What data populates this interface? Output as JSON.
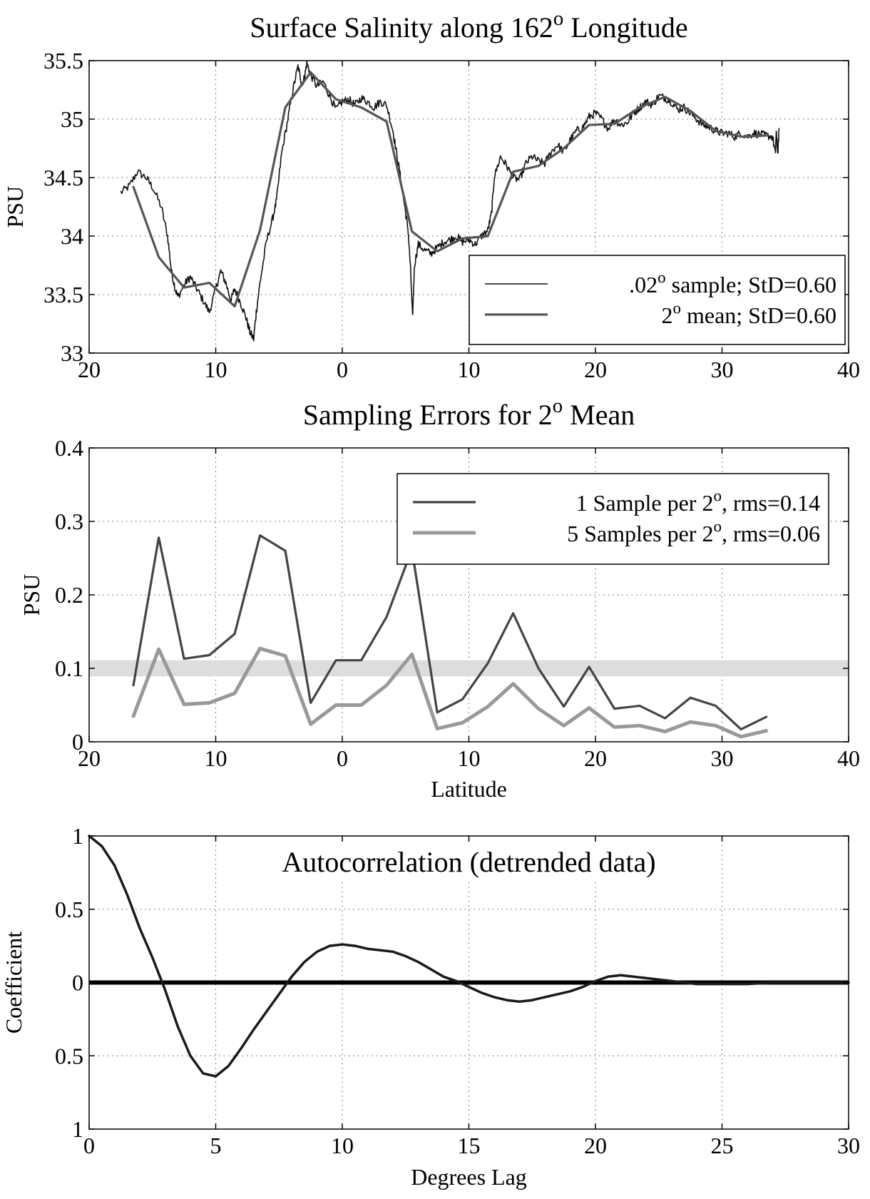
{
  "chart_data": [
    {
      "type": "line",
      "title": "Surface Salinity along 162",
      "title_superscript": "o",
      "title_tail": " Longitude",
      "xlabel": "",
      "ylabel": "PSU",
      "xlim": [
        -20,
        40
      ],
      "ylim": [
        33,
        35.5
      ],
      "xticks": [
        -20,
        -10,
        0,
        10,
        20,
        30,
        40
      ],
      "xtick_labels": [
        "20",
        "10",
        "0",
        "10",
        "20",
        "30",
        "40"
      ],
      "yticks": [
        33,
        33.5,
        34,
        34.5,
        35,
        35.5
      ],
      "ytick_labels": [
        "33",
        "33.5",
        "34",
        "34.5",
        "35",
        "35.5"
      ],
      "grid": true,
      "legend_position": "lower-right",
      "series": [
        {
          "name_pre": ".02",
          "name_sup": "o",
          "name_post": " sample;  StD=0.60",
          "color": "#111111",
          "width": 1.6,
          "noise": 0.035,
          "x": [
            -17.5,
            -16.8,
            -16.2,
            -15.5,
            -15,
            -14.3,
            -13.8,
            -13.5,
            -13.2,
            -13,
            -12.4,
            -12,
            -11.5,
            -11,
            -10.5,
            -10,
            -9.6,
            -9.2,
            -8.8,
            -8.5,
            -8,
            -7.6,
            -7.3,
            -7,
            -6.8,
            -6.5,
            -6,
            -5.5,
            -5.2,
            -4.8,
            -4.3,
            -3.9,
            -3.5,
            -3.2,
            -3,
            -2.8,
            -2.5,
            -2,
            -1.5,
            -1,
            -0.5,
            0,
            0.5,
            1,
            1.5,
            2,
            2.5,
            3,
            3.5,
            4,
            4.3,
            4.6,
            5,
            5.2,
            5.4,
            5.55,
            5.7,
            6,
            6.5,
            7,
            7.5,
            8,
            8.5,
            9,
            9.5,
            10,
            10.5,
            11,
            11.5,
            11.8,
            12,
            12.5,
            13,
            13.5,
            14,
            14.5,
            15,
            15.5,
            16,
            16.5,
            17,
            17.5,
            18,
            18.5,
            19,
            19.5,
            20,
            20.5,
            21,
            21.5,
            22,
            22.5,
            23,
            23.5,
            24,
            24.5,
            25,
            25.5,
            26,
            26.5,
            27,
            27.5,
            28,
            28.5,
            29,
            29.5,
            30,
            30.5,
            31,
            31.5,
            32,
            32.5,
            33,
            33.5,
            34,
            34.2,
            34.3,
            34.4,
            34.5
          ],
          "y": [
            34.37,
            34.43,
            34.55,
            34.5,
            34.42,
            34.25,
            34.0,
            33.7,
            33.55,
            33.48,
            33.6,
            33.65,
            33.55,
            33.45,
            33.35,
            33.55,
            33.7,
            33.6,
            33.45,
            33.55,
            33.42,
            33.3,
            33.18,
            33.12,
            33.35,
            33.6,
            33.95,
            34.15,
            34.3,
            34.7,
            35.0,
            35.25,
            35.45,
            35.3,
            35.35,
            35.48,
            35.38,
            35.28,
            35.32,
            35.2,
            35.08,
            35.15,
            35.17,
            35.12,
            35.18,
            35.15,
            35.1,
            35.15,
            35.12,
            34.9,
            34.7,
            34.5,
            34.2,
            34.05,
            33.7,
            33.3,
            33.75,
            33.93,
            33.88,
            33.85,
            33.9,
            33.95,
            33.97,
            34.0,
            33.95,
            33.97,
            33.93,
            34.0,
            34.05,
            34.2,
            34.5,
            34.68,
            34.6,
            34.5,
            34.48,
            34.62,
            34.68,
            34.64,
            34.62,
            34.72,
            34.78,
            34.72,
            34.82,
            34.9,
            34.93,
            35.02,
            35.05,
            35.0,
            34.92,
            35.0,
            34.95,
            34.97,
            35.05,
            35.1,
            35.15,
            35.12,
            35.2,
            35.18,
            35.15,
            35.08,
            35.1,
            35.05,
            35.0,
            34.95,
            34.93,
            34.9,
            34.88,
            34.88,
            34.85,
            34.88,
            34.85,
            34.88,
            34.87,
            34.86,
            34.85,
            34.7,
            34.9,
            34.68,
            34.92
          ]
        },
        {
          "name_pre": "2",
          "name_sup": "o",
          "name_post": " mean;  StD=0.60",
          "color": "#555555",
          "width": 3.2,
          "x": [
            -16.5,
            -14.5,
            -12.5,
            -10.5,
            -8.5,
            -6.5,
            -4.5,
            -2.5,
            -0.5,
            1.5,
            3.5,
            5.5,
            7.5,
            9.5,
            11.5,
            13.5,
            15.5,
            17.5,
            19.5,
            21.5,
            23.5,
            25.5,
            27.5,
            29.5,
            31.5,
            33.5
          ],
          "y": [
            34.42,
            33.82,
            33.56,
            33.6,
            33.4,
            34.05,
            35.1,
            35.4,
            35.17,
            35.1,
            34.98,
            34.04,
            33.87,
            33.98,
            34.0,
            34.55,
            34.6,
            34.75,
            34.95,
            34.96,
            35.1,
            35.19,
            35.07,
            34.9,
            34.85,
            34.86
          ]
        }
      ]
    },
    {
      "type": "line",
      "title": "Sampling Errors for 2",
      "title_superscript": "o",
      "title_tail": " Mean",
      "xlabel": "Latitude",
      "ylabel": "PSU",
      "xlim": [
        -20,
        40
      ],
      "ylim": [
        0,
        0.4
      ],
      "xticks": [
        -20,
        -10,
        0,
        10,
        20,
        30,
        40
      ],
      "xtick_labels": [
        "20",
        "10",
        "0",
        "10",
        "20",
        "30",
        "40"
      ],
      "yticks": [
        0,
        0.1,
        0.2,
        0.3,
        0.4
      ],
      "ytick_labels": [
        "0",
        "0.1",
        "0.2",
        "0.3",
        "0.4"
      ],
      "grid": true,
      "legend_position": "top-right",
      "reference_band": {
        "y": 0.1,
        "half_width": 0.011,
        "color": "#dddddd"
      },
      "series": [
        {
          "name_pre": "1 Sample per 2",
          "name_sup": "o",
          "name_post": ",  rms=0.14",
          "color": "#444444",
          "width": 3.2,
          "x": [
            -16.5,
            -14.5,
            -12.5,
            -10.5,
            -8.5,
            -6.5,
            -4.5,
            -2.5,
            -0.5,
            1.5,
            3.5,
            5.5,
            7.5,
            9.5,
            11.5,
            13.5,
            15.5,
            17.5,
            19.5,
            21.5,
            23.5,
            25.5,
            27.5,
            29.5,
            31.5,
            33.5
          ],
          "y": [
            0.077,
            0.278,
            0.113,
            0.118,
            0.147,
            0.281,
            0.26,
            0.053,
            0.111,
            0.111,
            0.17,
            0.262,
            0.04,
            0.058,
            0.107,
            0.175,
            0.1,
            0.048,
            0.102,
            0.045,
            0.049,
            0.032,
            0.06,
            0.049,
            0.017,
            0.034
          ]
        },
        {
          "name_pre": "5 Samples per 2",
          "name_sup": "o",
          "name_post": ",  rms=0.06",
          "color": "#999999",
          "width": 5,
          "x": [
            -16.5,
            -14.5,
            -12.5,
            -10.5,
            -8.5,
            -6.5,
            -4.5,
            -2.5,
            -0.5,
            1.5,
            3.5,
            5.5,
            7.5,
            9.5,
            11.5,
            13.5,
            15.5,
            17.5,
            19.5,
            21.5,
            23.5,
            25.5,
            27.5,
            29.5,
            31.5,
            33.5
          ],
          "y": [
            0.035,
            0.126,
            0.051,
            0.053,
            0.066,
            0.127,
            0.117,
            0.024,
            0.05,
            0.05,
            0.077,
            0.119,
            0.018,
            0.026,
            0.048,
            0.079,
            0.045,
            0.022,
            0.046,
            0.02,
            0.022,
            0.014,
            0.027,
            0.022,
            0.007,
            0.015
          ]
        }
      ]
    },
    {
      "type": "line",
      "title": "Autocorrelation (detrended data)",
      "title_superscript": "",
      "title_tail": "",
      "xlabel": "Degrees Lag",
      "ylabel": "Coefficient",
      "xlim": [
        0,
        30
      ],
      "ylim": [
        -1,
        1
      ],
      "xticks": [
        0,
        5,
        10,
        15,
        20,
        25,
        30
      ],
      "xtick_labels": [
        "0",
        "5",
        "10",
        "15",
        "20",
        "25",
        "30"
      ],
      "yticks": [
        -1,
        -0.5,
        0,
        0.5,
        1
      ],
      "ytick_labels": [
        "1",
        "0.5",
        "0",
        "0.5",
        "1"
      ],
      "grid": true,
      "reference_line": {
        "y": 0,
        "color": "#000000"
      },
      "series": [
        {
          "color": "#1a1a1a",
          "width": 3.5,
          "x": [
            0,
            0.5,
            1,
            1.5,
            2,
            2.5,
            3,
            3.5,
            4,
            4.5,
            5,
            5.5,
            6,
            6.5,
            7,
            7.5,
            8,
            8.5,
            9,
            9.5,
            10,
            10.5,
            11,
            11.5,
            12,
            12.5,
            13,
            13.5,
            14,
            14.5,
            15,
            15.5,
            16,
            16.5,
            17,
            17.5,
            18,
            18.5,
            19,
            19.5,
            20,
            20.5,
            21,
            21.5,
            22,
            22.5,
            23,
            23.5,
            24,
            24.5,
            25,
            26,
            27,
            28,
            29,
            30
          ],
          "y": [
            1.0,
            0.93,
            0.8,
            0.6,
            0.37,
            0.17,
            -0.05,
            -0.3,
            -0.5,
            -0.62,
            -0.64,
            -0.57,
            -0.45,
            -0.32,
            -0.2,
            -0.08,
            0.04,
            0.14,
            0.21,
            0.25,
            0.26,
            0.25,
            0.23,
            0.22,
            0.21,
            0.18,
            0.14,
            0.09,
            0.04,
            0.01,
            -0.03,
            -0.07,
            -0.1,
            -0.12,
            -0.13,
            -0.12,
            -0.1,
            -0.08,
            -0.06,
            -0.03,
            0.01,
            0.04,
            0.05,
            0.04,
            0.03,
            0.02,
            0.01,
            0.0,
            -0.01,
            -0.01,
            -0.01,
            -0.01,
            0.0,
            0.0,
            0.0,
            0.0
          ]
        }
      ]
    }
  ]
}
